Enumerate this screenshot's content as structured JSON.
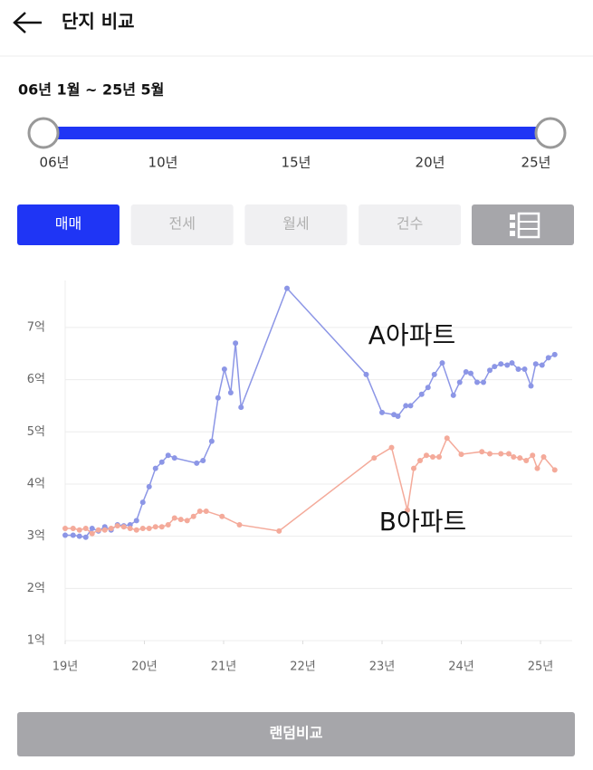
{
  "header": {
    "title": "단지 비교"
  },
  "range": {
    "text": "06년 1월 ~ 25년 5월",
    "labels": [
      "06년",
      "10년",
      "15년",
      "20년",
      "25년"
    ]
  },
  "tabs": [
    "매매",
    "전세",
    "월세",
    "건수"
  ],
  "chart_data": {
    "type": "line",
    "xlim": [
      19,
      25.4
    ],
    "ylim": [
      1,
      7.9
    ],
    "xticks": [
      {
        "value": 19,
        "label": "19년"
      },
      {
        "value": 20,
        "label": "20년"
      },
      {
        "value": 21,
        "label": "21년"
      },
      {
        "value": 22,
        "label": "22년"
      },
      {
        "value": 23,
        "label": "23년"
      },
      {
        "value": 24,
        "label": "24년"
      },
      {
        "value": 25,
        "label": "25년"
      }
    ],
    "yticks": [
      {
        "value": 1,
        "label": "1억"
      },
      {
        "value": 2,
        "label": "2억"
      },
      {
        "value": 3,
        "label": "3억"
      },
      {
        "value": 4,
        "label": "4억"
      },
      {
        "value": 5,
        "label": "5억"
      },
      {
        "value": 6,
        "label": "6억"
      },
      {
        "value": 7,
        "label": "7억"
      }
    ],
    "grid": true,
    "series": [
      {
        "name": "A아파트",
        "color": "#8c96e6",
        "x": [
          19.0,
          19.1,
          19.18,
          19.26,
          19.34,
          19.42,
          19.5,
          19.58,
          19.66,
          19.74,
          19.82,
          19.9,
          19.98,
          20.06,
          20.14,
          20.22,
          20.3,
          20.38,
          20.66,
          20.74,
          20.85,
          20.93,
          21.01,
          21.09,
          21.15,
          21.22,
          21.8,
          22.8,
          23.0,
          23.15,
          23.2,
          23.3,
          23.36,
          23.5,
          23.58,
          23.66,
          23.76,
          23.9,
          23.98,
          24.06,
          24.12,
          24.2,
          24.28,
          24.36,
          24.42,
          24.5,
          24.58,
          24.64,
          24.72,
          24.8,
          24.88,
          24.94,
          25.02,
          25.1,
          25.18
        ],
        "values": [
          3.02,
          3.02,
          3.0,
          2.98,
          3.15,
          3.1,
          3.18,
          3.12,
          3.22,
          3.2,
          3.22,
          3.3,
          3.65,
          3.95,
          4.3,
          4.42,
          4.55,
          4.5,
          4.4,
          4.45,
          4.82,
          5.65,
          6.2,
          5.75,
          6.7,
          5.47,
          7.75,
          6.1,
          5.37,
          5.33,
          5.3,
          5.5,
          5.5,
          5.72,
          5.85,
          6.1,
          6.32,
          5.7,
          5.95,
          6.15,
          6.12,
          5.95,
          5.95,
          6.18,
          6.25,
          6.3,
          6.28,
          6.32,
          6.2,
          6.2,
          5.88,
          6.3,
          6.28,
          6.42,
          6.48
        ]
      },
      {
        "name": "B아파트",
        "color": "#f4aa9a",
        "x": [
          19.0,
          19.1,
          19.18,
          19.26,
          19.34,
          19.42,
          19.5,
          19.58,
          19.66,
          19.74,
          19.82,
          19.9,
          19.98,
          20.06,
          20.14,
          20.22,
          20.3,
          20.38,
          20.46,
          20.54,
          20.62,
          20.7,
          20.78,
          20.98,
          21.2,
          21.7,
          22.9,
          23.12,
          23.32,
          23.4,
          23.48,
          23.56,
          23.64,
          23.72,
          23.82,
          24.0,
          24.26,
          24.36,
          24.5,
          24.6,
          24.66,
          24.74,
          24.82,
          24.9,
          24.96,
          25.04,
          25.18
        ],
        "values": [
          3.15,
          3.15,
          3.12,
          3.15,
          3.05,
          3.12,
          3.12,
          3.15,
          3.2,
          3.18,
          3.15,
          3.12,
          3.15,
          3.15,
          3.18,
          3.18,
          3.22,
          3.35,
          3.32,
          3.3,
          3.38,
          3.48,
          3.48,
          3.38,
          3.22,
          3.1,
          4.5,
          4.7,
          3.5,
          4.3,
          4.45,
          4.55,
          4.52,
          4.52,
          4.88,
          4.57,
          4.62,
          4.58,
          4.58,
          4.58,
          4.52,
          4.5,
          4.45,
          4.55,
          4.3,
          4.52,
          4.27
        ]
      }
    ]
  },
  "button": {
    "label": "랜덤비교"
  }
}
